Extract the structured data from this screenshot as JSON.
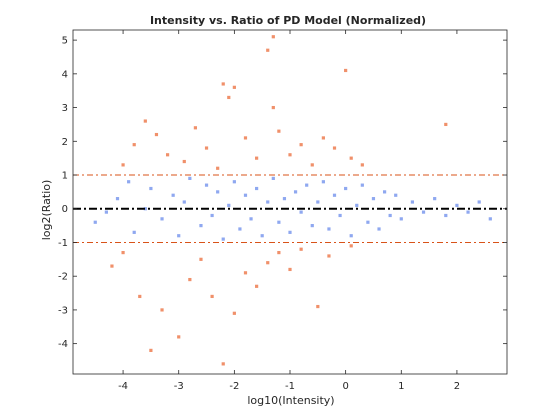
{
  "chart_data": {
    "type": "scatter",
    "title": "Intensity vs. Ratio of PD Model (Normalized)",
    "xlabel": "log10(Intensity)",
    "ylabel": "log2(Ratio)",
    "xlim": [
      -4.9,
      2.9
    ],
    "ylim": [
      -4.9,
      5.3
    ],
    "xticks": [
      -4,
      -3,
      -2,
      -1,
      0,
      1,
      2
    ],
    "yticks": [
      -4,
      -3,
      -2,
      -1,
      0,
      1,
      2,
      3,
      4,
      5
    ],
    "xtick_labels": [
      "-4",
      "-3",
      "-2",
      "-1",
      "0",
      "1",
      "2"
    ],
    "ytick_labels": [
      "-4",
      "-3",
      "-2",
      "-1",
      "0",
      "1",
      "2",
      "3",
      "4",
      "5"
    ],
    "grid": false,
    "colors": {
      "inside_band": "#8fa8f0",
      "outside_band": "#f0906a",
      "zero_line": "#000000",
      "threshold_lines": "#d95319"
    },
    "reference_lines": [
      {
        "y": 0,
        "style": "dash-dot",
        "color": "#000000"
      },
      {
        "y": 1,
        "style": "dash-dot",
        "color": "#d95319"
      },
      {
        "y": -1,
        "style": "dash-dot",
        "color": "#d95319"
      }
    ],
    "series": [
      {
        "values_note": "",
        "points": [
          [
            -4.5,
            -0.4
          ],
          [
            -4.3,
            -0.1
          ],
          [
            -4.1,
            0.3
          ],
          [
            -3.9,
            0.8
          ],
          [
            -3.8,
            -0.7
          ],
          [
            -3.6,
            0.0
          ],
          [
            -3.5,
            0.6
          ],
          [
            -3.3,
            -0.3
          ],
          [
            -3.1,
            0.4
          ],
          [
            -3.0,
            -0.8
          ],
          [
            -2.9,
            0.2
          ],
          [
            -2.8,
            0.9
          ],
          [
            -2.6,
            -0.5
          ],
          [
            -2.5,
            0.7
          ],
          [
            -2.4,
            -0.2
          ],
          [
            -2.3,
            0.5
          ],
          [
            -2.2,
            -0.9
          ],
          [
            -2.1,
            0.1
          ],
          [
            -2.0,
            0.8
          ],
          [
            -1.9,
            -0.6
          ],
          [
            -1.8,
            0.4
          ],
          [
            -1.7,
            -0.3
          ],
          [
            -1.6,
            0.6
          ],
          [
            -1.5,
            -0.8
          ],
          [
            -1.4,
            0.2
          ],
          [
            -1.3,
            0.9
          ],
          [
            -1.2,
            -0.4
          ],
          [
            -1.1,
            0.3
          ],
          [
            -1.0,
            -0.7
          ],
          [
            -0.9,
            0.5
          ],
          [
            -0.8,
            -0.1
          ],
          [
            -0.7,
            0.7
          ],
          [
            -0.6,
            -0.5
          ],
          [
            -0.5,
            0.2
          ],
          [
            -0.4,
            0.8
          ],
          [
            -0.3,
            -0.6
          ],
          [
            -0.2,
            0.4
          ],
          [
            -0.1,
            -0.2
          ],
          [
            0.0,
            0.6
          ],
          [
            0.1,
            -0.8
          ],
          [
            0.2,
            0.1
          ],
          [
            0.3,
            0.7
          ],
          [
            0.4,
            -0.4
          ],
          [
            0.5,
            0.3
          ],
          [
            0.6,
            -0.6
          ],
          [
            0.7,
            0.5
          ],
          [
            0.8,
            -0.2
          ],
          [
            0.9,
            0.4
          ],
          [
            1.0,
            -0.3
          ],
          [
            1.2,
            0.2
          ],
          [
            1.4,
            -0.1
          ],
          [
            1.6,
            0.3
          ],
          [
            1.8,
            -0.2
          ],
          [
            2.0,
            0.1
          ],
          [
            2.2,
            -0.1
          ],
          [
            2.4,
            0.2
          ],
          [
            2.6,
            -0.3
          ]
        ]
      },
      {
        "values_note": "",
        "points": [
          [
            -4.0,
            1.3
          ],
          [
            -3.8,
            1.9
          ],
          [
            -3.6,
            2.6
          ],
          [
            -3.4,
            2.2
          ],
          [
            -3.2,
            1.6
          ],
          [
            -2.9,
            1.4
          ],
          [
            -2.7,
            2.4
          ],
          [
            -2.5,
            1.8
          ],
          [
            -2.3,
            1.2
          ],
          [
            -2.2,
            3.7
          ],
          [
            -2.1,
            3.3
          ],
          [
            -2.0,
            3.6
          ],
          [
            -1.8,
            2.1
          ],
          [
            -1.6,
            1.5
          ],
          [
            -1.4,
            4.7
          ],
          [
            -1.3,
            3.0
          ],
          [
            -1.2,
            2.3
          ],
          [
            -1.0,
            1.6
          ],
          [
            -0.8,
            1.9
          ],
          [
            -0.6,
            1.3
          ],
          [
            -0.4,
            2.1
          ],
          [
            -0.2,
            1.8
          ],
          [
            0.0,
            4.1
          ],
          [
            0.1,
            1.5
          ],
          [
            0.3,
            1.3
          ],
          [
            1.8,
            2.5
          ],
          [
            -1.3,
            5.1
          ],
          [
            -4.2,
            -1.7
          ],
          [
            -4.0,
            -1.3
          ],
          [
            -3.7,
            -2.6
          ],
          [
            -3.5,
            -4.2
          ],
          [
            -3.3,
            -3.0
          ],
          [
            -3.0,
            -3.8
          ],
          [
            -2.8,
            -2.1
          ],
          [
            -2.6,
            -1.5
          ],
          [
            -2.4,
            -2.6
          ],
          [
            -2.2,
            -4.6
          ],
          [
            -2.0,
            -3.1
          ],
          [
            -1.8,
            -1.9
          ],
          [
            -1.6,
            -2.3
          ],
          [
            -1.4,
            -1.6
          ],
          [
            -1.2,
            -1.3
          ],
          [
            -1.0,
            -1.8
          ],
          [
            -0.8,
            -1.2
          ],
          [
            -0.5,
            -2.9
          ],
          [
            -0.3,
            -1.4
          ],
          [
            0.1,
            -1.1
          ]
        ]
      }
    ]
  }
}
